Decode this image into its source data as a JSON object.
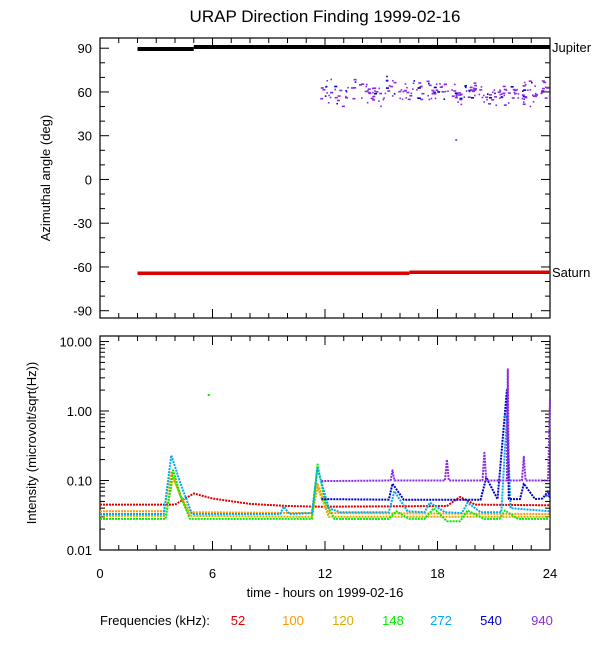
{
  "chart_data": [
    {
      "type": "scatter",
      "title": "URAP Direction Finding  1999-02-16",
      "ylabel": "Azimuthal angle (deg)",
      "ylim": [
        -95,
        97
      ],
      "yticks": [
        90,
        60,
        30,
        0,
        -30,
        -60,
        -90
      ],
      "ytick_labels": [
        "90",
        "60",
        "30",
        "0",
        "-30",
        "-60",
        "-90"
      ],
      "xlim": [
        0,
        24
      ],
      "reference_lines": [
        {
          "name": "Jupiter",
          "color": "#000000",
          "segments": [
            [
              2.0,
              5.0,
              89.5
            ],
            [
              5.0,
              24.0,
              90.8
            ]
          ]
        },
        {
          "name": "Saturn",
          "color": "#dd0000",
          "segments": [
            [
              2.0,
              16.5,
              -64.3
            ],
            [
              16.5,
              24.0,
              -63.6
            ]
          ]
        }
      ],
      "scatter_series": [
        {
          "name": "940 kHz directions",
          "color": "#8a2be2",
          "x_range": [
            11.8,
            24.0
          ],
          "y_range": [
            47,
            72
          ],
          "outliers": [
            [
              19.0,
              27
            ]
          ]
        },
        {
          "name": "540 kHz directions",
          "color": "#0000cc",
          "x_range": [
            12.0,
            23.5
          ],
          "y_range": [
            50,
            72
          ]
        }
      ]
    },
    {
      "type": "line",
      "ylabel": "Intensity (microvolt/sqrt(Hz))",
      "xlabel": "time - hours on 1999-02-16",
      "yscale": "log",
      "ylim": [
        0.01,
        12
      ],
      "yticks": [
        10,
        1,
        0.1,
        0.01
      ],
      "ytick_labels": [
        "10.00",
        "1.00",
        "0.10",
        "0.01"
      ],
      "xlim": [
        0,
        24
      ],
      "xticks": [
        0,
        6,
        12,
        18,
        24
      ],
      "xtick_labels": [
        "0",
        "6",
        "12",
        "18",
        "24"
      ],
      "series": [
        {
          "name": "52",
          "color": "#dd0000",
          "points": [
            [
              0,
              0.045
            ],
            [
              4.0,
              0.045
            ],
            [
              5.0,
              0.065
            ],
            [
              6,
              0.055
            ],
            [
              8,
              0.046
            ],
            [
              10,
              0.043
            ],
            [
              11.8,
              0.042
            ],
            [
              18.5,
              0.043
            ],
            [
              19.2,
              0.058
            ],
            [
              20,
              0.045
            ],
            [
              24,
              0.044
            ]
          ]
        },
        {
          "name": "100",
          "color": "#ff9900",
          "points": [
            [
              0,
              0.036
            ],
            [
              3.4,
              0.036
            ],
            [
              3.8,
              0.13
            ],
            [
              4.3,
              0.06
            ],
            [
              4.8,
              0.035
            ],
            [
              11.3,
              0.034
            ],
            [
              11.6,
              0.09
            ],
            [
              12.2,
              0.034
            ],
            [
              24,
              0.033
            ]
          ]
        },
        {
          "name": "120",
          "color": "#ddaa00",
          "points": [
            [
              0,
              0.031
            ],
            [
              3.5,
              0.031
            ],
            [
              3.9,
              0.11
            ],
            [
              4.4,
              0.05
            ],
            [
              4.8,
              0.031
            ],
            [
              11.3,
              0.03
            ],
            [
              11.6,
              0.08
            ],
            [
              12.2,
              0.03
            ],
            [
              24,
              0.03
            ]
          ]
        },
        {
          "name": "148",
          "color": "#00ee00",
          "points": [
            [
              0,
              0.028
            ],
            [
              3.5,
              0.028
            ],
            [
              3.9,
              0.14
            ],
            [
              4.3,
              0.06
            ],
            [
              4.8,
              0.028
            ],
            [
              11.3,
              0.028
            ],
            [
              11.6,
              0.17
            ],
            [
              12.0,
              0.05
            ],
            [
              12.5,
              0.028
            ],
            [
              15.4,
              0.028
            ],
            [
              15.8,
              0.036
            ],
            [
              16.5,
              0.028
            ],
            [
              17.3,
              0.028
            ],
            [
              17.8,
              0.04
            ],
            [
              18.5,
              0.026
            ],
            [
              19.2,
              0.026
            ],
            [
              19.6,
              0.037
            ],
            [
              20.5,
              0.028
            ],
            [
              21.3,
              0.028
            ],
            [
              21.6,
              0.037
            ],
            [
              22.3,
              0.028
            ],
            [
              24,
              0.028
            ]
          ]
        },
        {
          "name": "272",
          "color": "#00aaee",
          "points": [
            [
              0,
              0.033
            ],
            [
              3.4,
              0.033
            ],
            [
              3.8,
              0.23
            ],
            [
              4.3,
              0.09
            ],
            [
              4.9,
              0.033
            ],
            [
              9.6,
              0.033
            ],
            [
              9.8,
              0.042
            ],
            [
              10.1,
              0.033
            ],
            [
              11.3,
              0.034
            ],
            [
              11.6,
              0.15
            ],
            [
              12.2,
              0.04
            ],
            [
              12.8,
              0.035
            ],
            [
              15.4,
              0.035
            ],
            [
              15.7,
              0.07
            ],
            [
              16.4,
              0.036
            ],
            [
              17.3,
              0.035
            ],
            [
              17.6,
              0.048
            ],
            [
              18.4,
              0.035
            ],
            [
              19.3,
              0.034
            ],
            [
              19.6,
              0.048
            ],
            [
              20.3,
              0.035
            ],
            [
              21.4,
              0.035
            ],
            [
              21.7,
              0.85
            ],
            [
              21.9,
              0.04
            ],
            [
              24,
              0.036
            ]
          ]
        },
        {
          "name": "540",
          "color": "#0000cc",
          "points": [
            [
              11.8,
              0.054
            ],
            [
              15.4,
              0.053
            ],
            [
              15.6,
              0.09
            ],
            [
              16.2,
              0.053
            ],
            [
              20.3,
              0.053
            ],
            [
              20.6,
              0.11
            ],
            [
              21.2,
              0.054
            ],
            [
              21.7,
              2.0
            ],
            [
              21.8,
              0.054
            ],
            [
              22.4,
              0.054
            ],
            [
              22.6,
              0.09
            ],
            [
              23.2,
              0.054
            ],
            [
              23.6,
              0.055
            ],
            [
              23.9,
              0.07
            ],
            [
              24,
              0.055
            ]
          ]
        },
        {
          "name": "940",
          "color": "#8a2be2",
          "points": [
            [
              11.8,
              0.098
            ],
            [
              15.5,
              0.1
            ],
            [
              15.6,
              0.14
            ],
            [
              15.7,
              0.1
            ],
            [
              18.4,
              0.1
            ],
            [
              18.5,
              0.2
            ],
            [
              18.6,
              0.1
            ],
            [
              20.4,
              0.1
            ],
            [
              20.5,
              0.25
            ],
            [
              20.6,
              0.1
            ],
            [
              21.7,
              0.1
            ],
            [
              21.75,
              4.0
            ],
            [
              21.8,
              0.1
            ],
            [
              22.5,
              0.1
            ],
            [
              22.6,
              0.22
            ],
            [
              22.7,
              0.1
            ],
            [
              23.9,
              0.1
            ],
            [
              24,
              1.5
            ]
          ]
        }
      ]
    }
  ],
  "frequencies": {
    "label": "Frequencies (kHz):",
    "items": [
      {
        "label": "52",
        "color": "#dd0000"
      },
      {
        "label": "100",
        "color": "#ff9900"
      },
      {
        "label": "120",
        "color": "#ddaa00"
      },
      {
        "label": "148",
        "color": "#00ee00"
      },
      {
        "label": "272",
        "color": "#00aaee"
      },
      {
        "label": "540",
        "color": "#0000cc"
      },
      {
        "label": "940",
        "color": "#8a2be2"
      }
    ]
  }
}
